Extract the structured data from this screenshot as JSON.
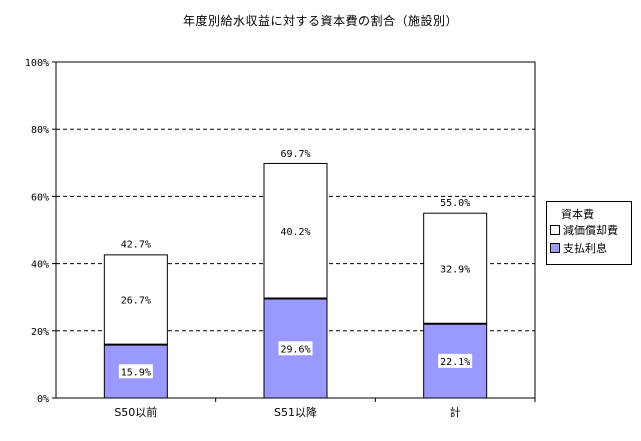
{
  "chart_data": {
    "type": "bar",
    "stacked": true,
    "title": "年度別給水収益に対する資本費の割合（施設別）",
    "categories": [
      "S50以前",
      "S51以降",
      "計"
    ],
    "series": [
      {
        "name": "支払利息",
        "values": [
          15.9,
          29.6,
          22.1
        ],
        "labels": [
          "15.9%",
          "29.6%",
          "22.1%"
        ],
        "color": "#9999ff"
      },
      {
        "name": "減価償却費",
        "values": [
          26.7,
          40.2,
          32.9
        ],
        "labels": [
          "26.7%",
          "40.2%",
          "32.9%"
        ],
        "color": "#ffffff"
      }
    ],
    "totals": [
      42.7,
      69.7,
      55.0
    ],
    "total_labels": [
      "42.7%",
      "69.7%",
      "55.0%"
    ],
    "ylim": [
      0,
      100
    ],
    "yticks": [
      0,
      20,
      40,
      60,
      80,
      100
    ],
    "ytick_labels": [
      "0%",
      "20%",
      "40%",
      "60%",
      "80%",
      "100%"
    ],
    "grid": true,
    "legend": {
      "title": "資本費",
      "placement": "right",
      "items": [
        "減価償却費",
        "支払利息"
      ]
    }
  }
}
